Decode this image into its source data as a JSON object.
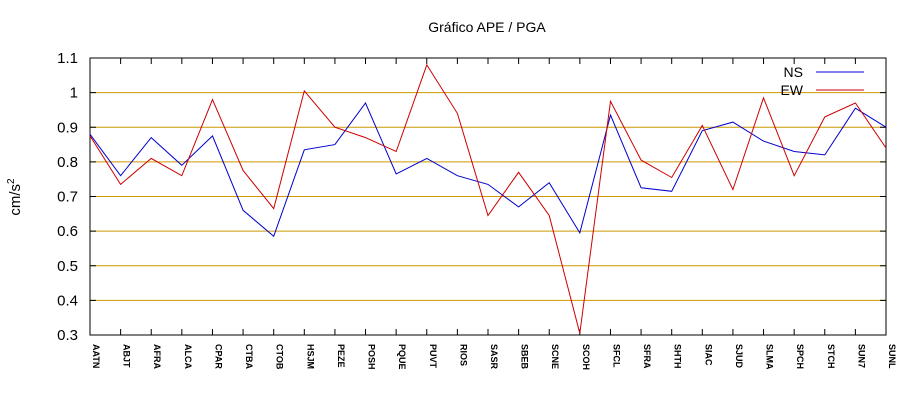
{
  "chart_data": {
    "type": "line",
    "title": "Gráfico  APE / PGA",
    "xlabel": "",
    "ylabel": "cm/s",
    "ylabel_superscript": "2",
    "ylim": [
      0.3,
      1.1
    ],
    "yticks": [
      "0.3",
      "0.4",
      "0.5",
      "0.6",
      "0.7",
      "0.8",
      "0.9",
      "1",
      "1.1"
    ],
    "grid": "horizontal",
    "legend_position": "top-right",
    "categories": [
      "AATN",
      "ABJT",
      "AFRA",
      "ALCA",
      "CPAR",
      "CTBA",
      "CTOB",
      "HSJM",
      "PEZE",
      "POSH",
      "PQUE",
      "PUVT",
      "RIOS",
      "SASR",
      "SBEB",
      "SCNE",
      "SCOH",
      "SFCL",
      "SFRA",
      "SHTH",
      "SIAC",
      "SJUD",
      "SLMA",
      "SPCH",
      "STCH",
      "SUN7",
      "SUNL"
    ],
    "series": [
      {
        "name": "NS",
        "color": "#0000cc",
        "values": [
          0.88,
          0.76,
          0.87,
          0.79,
          0.875,
          0.66,
          0.585,
          0.835,
          0.85,
          0.97,
          0.765,
          0.81,
          0.76,
          0.735,
          0.67,
          0.74,
          0.595,
          0.935,
          0.725,
          0.715,
          0.89,
          0.915,
          0.86,
          0.83,
          0.82,
          0.955,
          0.9
        ]
      },
      {
        "name": "EW",
        "color": "#cc0000",
        "values": [
          0.875,
          0.735,
          0.81,
          0.76,
          0.98,
          0.775,
          0.665,
          1.005,
          0.9,
          0.87,
          0.83,
          1.08,
          0.94,
          0.645,
          0.77,
          0.645,
          0.305,
          0.975,
          0.805,
          0.755,
          0.905,
          0.72,
          0.985,
          0.76,
          0.93,
          0.97,
          0.84
        ]
      }
    ],
    "colors": {
      "grid": "#cc9900",
      "axis": "#000000"
    }
  }
}
